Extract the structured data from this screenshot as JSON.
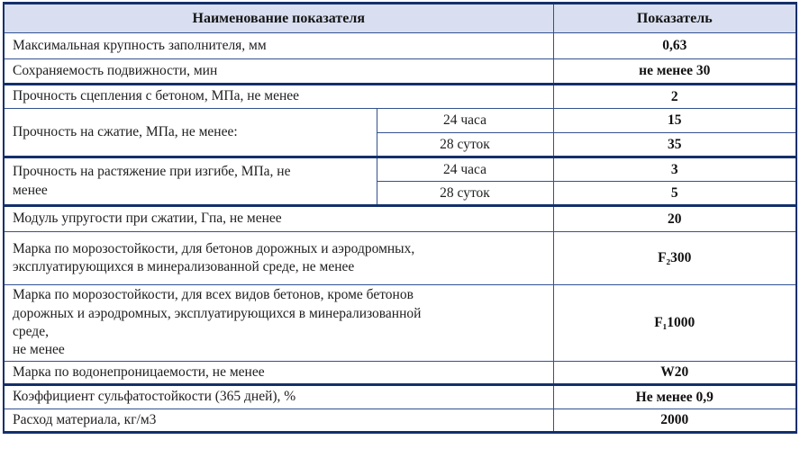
{
  "table": {
    "header": {
      "name": "Наименование показателя",
      "value": "Показатель"
    },
    "rows": [
      {
        "label": "Максимальная крупность заполнителя, мм",
        "value": "0,63"
      },
      {
        "label": "Сохраняемость подвижности, мин",
        "value": "не менее 30"
      },
      {
        "label": "Прочность сцепления с бетоном, МПа, не менее",
        "value": "2"
      },
      {
        "label": "Прочность на сжатие, МПа, не менее:",
        "subrows": [
          {
            "condition": "24 часа",
            "value": "15"
          },
          {
            "condition": "28 суток",
            "value": "35"
          }
        ]
      },
      {
        "label": "Прочность на растяжение при изгибе, МПа, не\nменее",
        "subrows": [
          {
            "condition": "24 часа",
            "value": "3"
          },
          {
            "condition": "28 суток",
            "value": "5"
          }
        ]
      },
      {
        "label": "Модуль упругости при сжатии, Гпа, не менее",
        "value": "20"
      },
      {
        "label": "Марка по морозостойкости, для бетонов дорожных и аэродромных,\nэксплуатирующихся в минерализованной среде, не менее",
        "value": "F₂300"
      },
      {
        "label": "Марка по морозостойкости, для всех видов бетонов, кроме бетонов\nдорожных и аэродромных, эксплуатирующихся в минерализованной\nсреде,\nне менее",
        "value": "F₁1000"
      },
      {
        "label": "Марка по водонепроницаемости, не менее",
        "value": "W20"
      },
      {
        "label": "Коэффициент сульфатостойкости (365 дней), %",
        "value": "Не менее 0,9"
      },
      {
        "label": "Расход материала, кг/м3",
        "value": "2000"
      }
    ]
  },
  "colors": {
    "header_bg": "#d9dff1",
    "border_thin": "#33518f",
    "border_thick": "#14306b",
    "text": "#1e1e1e"
  }
}
